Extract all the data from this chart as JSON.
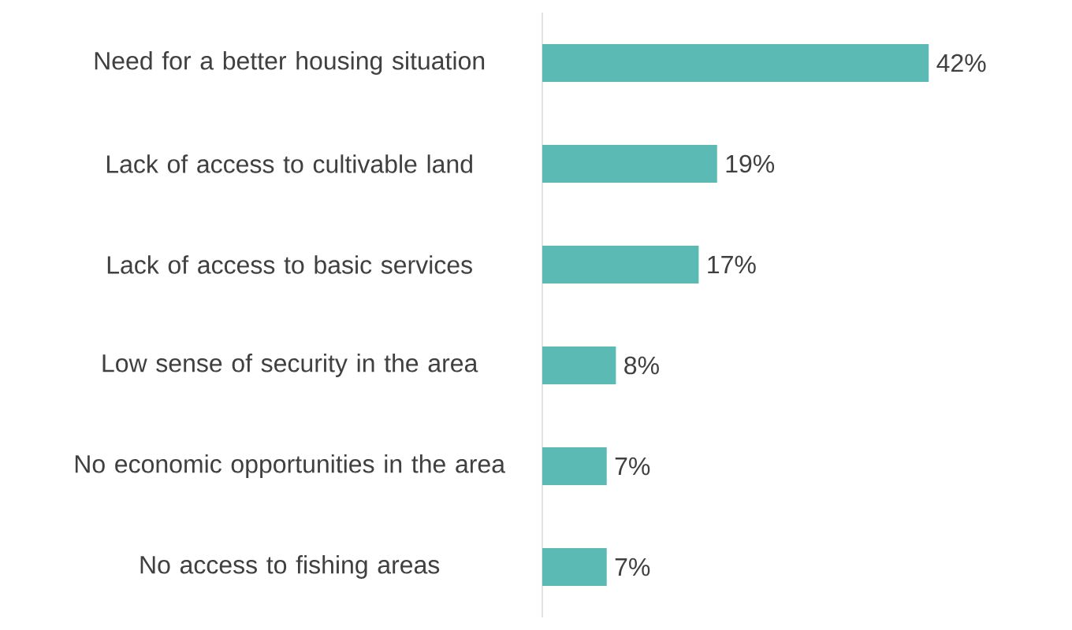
{
  "chart_data": {
    "type": "bar",
    "orientation": "horizontal",
    "categories": [
      "Need for a better housing situation",
      "Lack of access to cultivable land",
      "Lack of access to basic services",
      "Low sense of security in the area",
      "No economic opportunities in the area",
      "No access to fishing areas"
    ],
    "values": [
      42,
      19,
      17,
      8,
      7,
      7
    ],
    "value_labels": [
      "42%",
      "19%",
      "17%",
      "8%",
      "7%",
      "7%"
    ],
    "color": "#5bbab3"
  }
}
